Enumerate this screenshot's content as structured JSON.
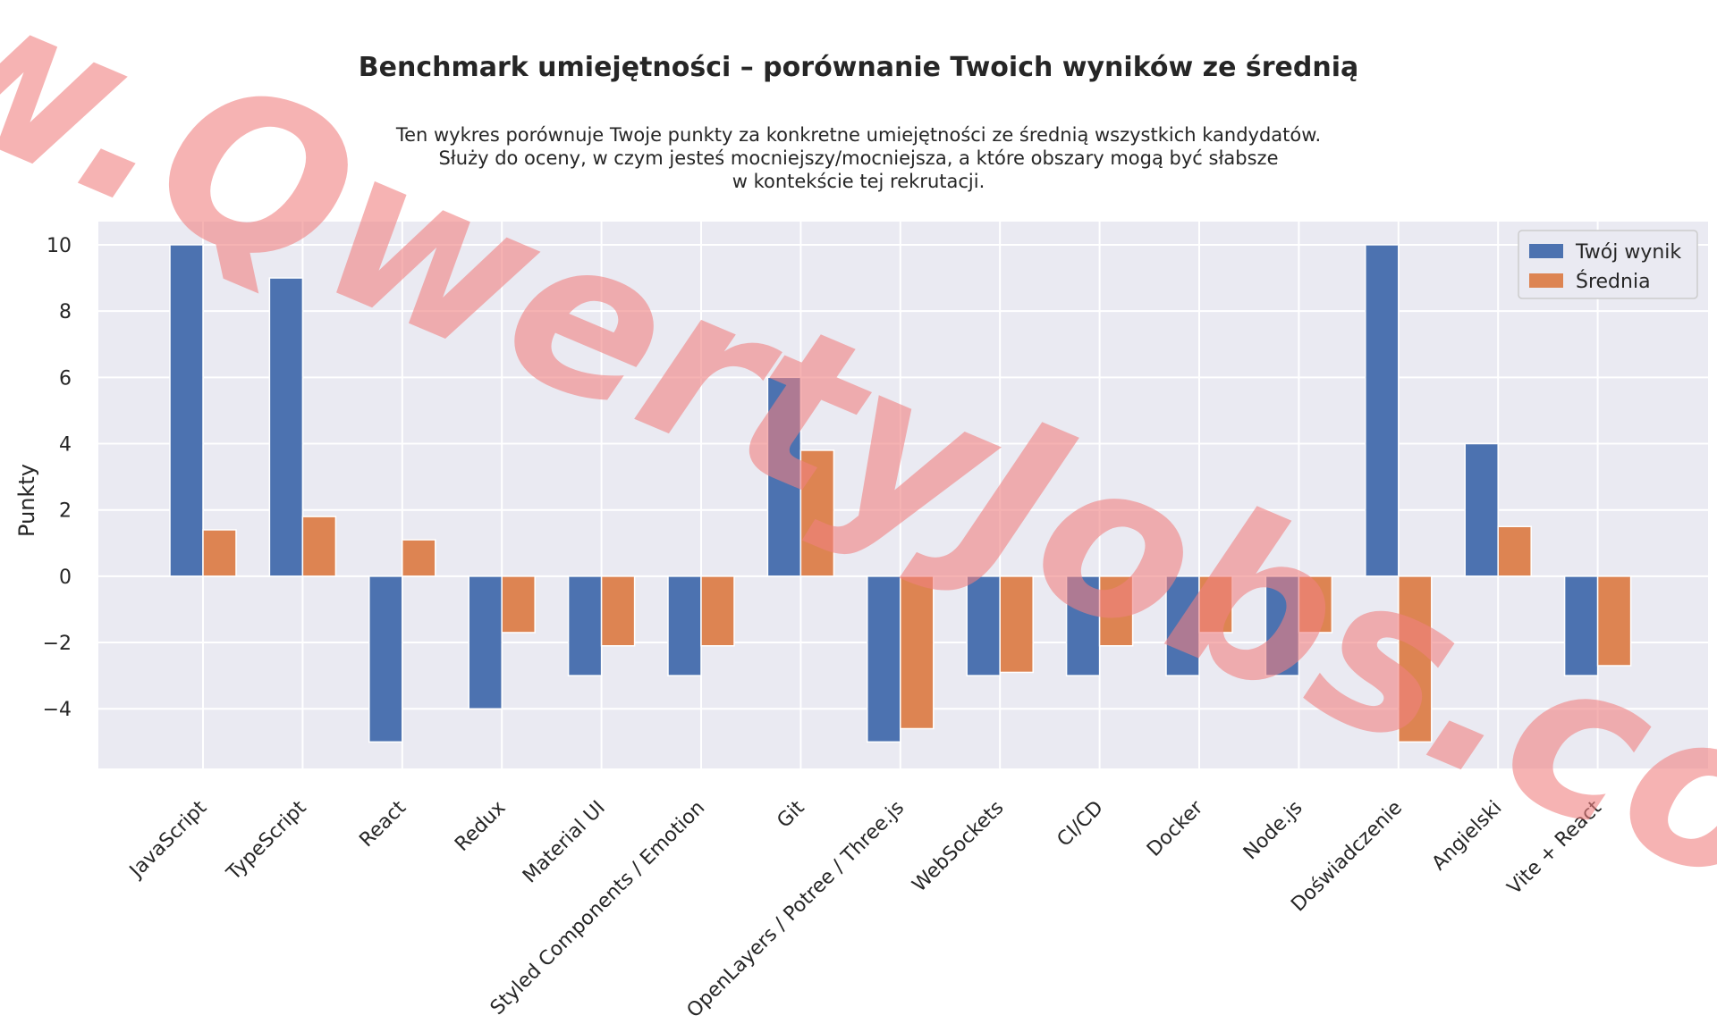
{
  "chart_data": {
    "type": "bar",
    "title": "Benchmark umiejętności – porównanie Twoich wyników ze średnią",
    "subtitle": "Ten wykres porównuje Twoje punkty za konkretne umiejętności ze średnią wszystkich kandydatów.\nSłuży do oceny, w czym jesteś mocniejszy/mocniejsza, a które obszary mogą być słabsze\nw kontekście tej rekrutacji.",
    "xlabel": "",
    "ylabel": "Punkty",
    "ylim": [
      -5.8,
      10.7
    ],
    "yticks": [
      -4,
      -2,
      0,
      2,
      4,
      6,
      8,
      10
    ],
    "grid": true,
    "legend_position": "top-right",
    "categories": [
      "JavaScript",
      "TypeScript",
      "React",
      "Redux",
      "Material UI",
      "Styled Components / Emotion",
      "Git",
      "OpenLayers / Potree / Three.js",
      "WebSockets",
      "CI/CD",
      "Docker",
      "Node.js",
      "Doświadczenie",
      "Angielski",
      "Vite + React"
    ],
    "series": [
      {
        "name": "Twój wynik",
        "color": "#4c72b0",
        "values": [
          10,
          9,
          -5,
          -4,
          -3,
          -3,
          6,
          -5,
          -3,
          -3,
          -3,
          -3,
          10,
          4,
          -3
        ]
      },
      {
        "name": "Średnia",
        "color": "#dd8452",
        "values": [
          1.4,
          1.8,
          1.1,
          -1.7,
          -2.1,
          -2.1,
          3.8,
          -4.6,
          -2.9,
          -2.1,
          -1.7,
          -1.7,
          -5.0,
          1.5,
          -2.7
        ]
      }
    ]
  },
  "watermark": {
    "text": "www.QwertyJobs.com",
    "color": "#f08080"
  }
}
